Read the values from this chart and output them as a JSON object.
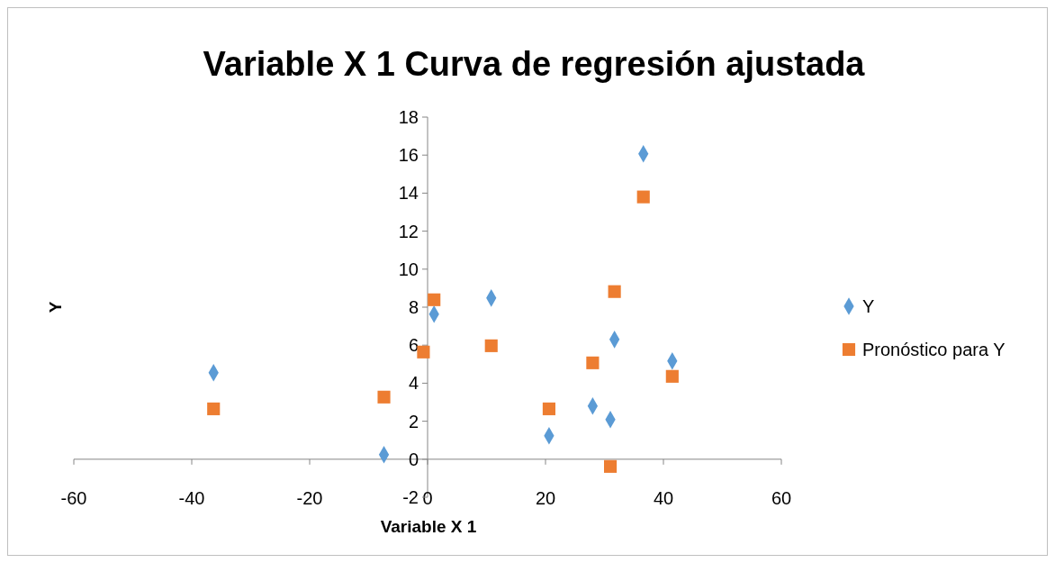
{
  "chart_data": {
    "type": "scatter",
    "title": "Variable X 1 Curva de regresión ajustada",
    "xlabel": "Variable X 1",
    "ylabel": "Y",
    "xlim": [
      -60,
      60
    ],
    "xticks": [
      -60,
      -40,
      -20,
      0,
      20,
      40,
      60
    ],
    "ylim": [
      -2,
      18
    ],
    "yticks": [
      -2,
      0,
      2,
      4,
      6,
      8,
      10,
      12,
      14,
      16,
      18
    ],
    "grid": false,
    "legend": "right",
    "series": [
      {
        "name": "Y",
        "color": "#5b9bd5",
        "marker": "diamond",
        "x": [
          -36.3,
          -7.4,
          1.1,
          10.8,
          20.6,
          28.0,
          31.0,
          31.7,
          36.6,
          41.5
        ],
        "values": [
          4.55,
          0.24,
          7.63,
          8.48,
          1.23,
          2.8,
          2.09,
          6.3,
          16.07,
          5.17
        ]
      },
      {
        "name": "Pronóstico para Y",
        "color": "#ed7d31",
        "marker": "square",
        "x": [
          -36.3,
          -7.4,
          -0.7,
          1.1,
          10.8,
          20.6,
          28.0,
          31.0,
          31.7,
          36.6,
          41.5
        ],
        "values": [
          2.65,
          3.27,
          5.64,
          8.39,
          5.97,
          2.65,
          5.07,
          -0.38,
          8.82,
          13.8,
          4.36
        ]
      }
    ]
  }
}
